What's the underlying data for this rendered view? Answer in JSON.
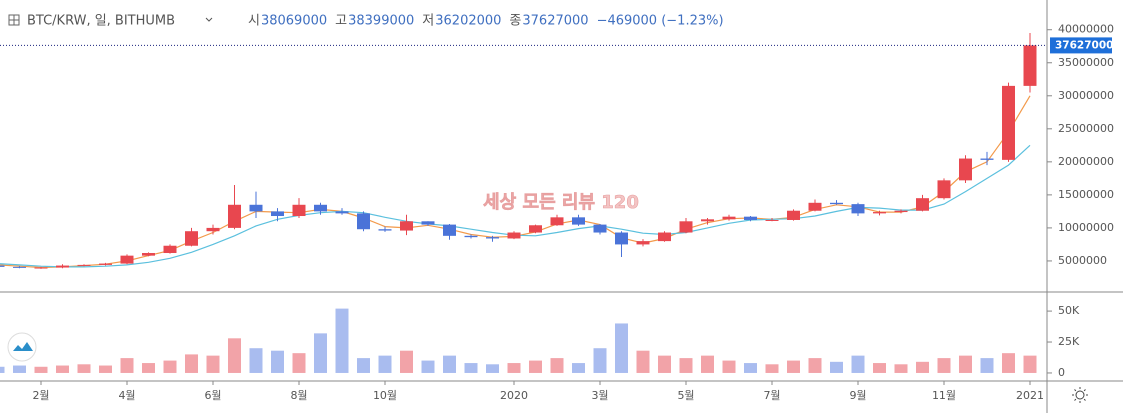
{
  "header": {
    "symbol": "BTC/KRW, 일, BITHUMB",
    "ohlc": [
      {
        "label": "시",
        "value": 38069000
      },
      {
        "label": "고",
        "value": 38399000
      },
      {
        "label": "저",
        "value": 36202000
      },
      {
        "label": "종",
        "value": 37627000
      }
    ],
    "change": "−469000 (−1.23%)"
  },
  "watermark": "세상 모든 리뷰 120",
  "chart_data": {
    "type": "candlestick",
    "categories": [
      null,
      null,
      "2월",
      null,
      null,
      null,
      "4월",
      null,
      null,
      null,
      "6월",
      null,
      null,
      null,
      "8월",
      null,
      null,
      null,
      "10월",
      null,
      null,
      null,
      null,
      null,
      "2020",
      null,
      null,
      null,
      "3월",
      null,
      null,
      null,
      "5월",
      null,
      null,
      null,
      "7월",
      null,
      null,
      null,
      "9월",
      null,
      null,
      null,
      "11월",
      null,
      null,
      null,
      "2021"
    ],
    "open": [
      4300000,
      4100000,
      4000000,
      4000000,
      4300000,
      4400000,
      4600000,
      5800000,
      6200000,
      7300000,
      9500000,
      10000000,
      13500000,
      12500000,
      11800000,
      13500000,
      12500000,
      12200000,
      9800000,
      9600000,
      11000000,
      10500000,
      8800000,
      8600000,
      8400000,
      9300000,
      10400000,
      11600000,
      10500000,
      9300000,
      7500000,
      8000000,
      9300000,
      11000000,
      11300000,
      11700000,
      11200000,
      11200000,
      12600000,
      13800000,
      13600000,
      12200000,
      12400000,
      12600000,
      14500000,
      17200000,
      20500000,
      20300000,
      31500000
    ],
    "high": [
      4500000,
      4200000,
      4100000,
      4500000,
      4500000,
      4700000,
      6000000,
      6300000,
      7500000,
      10000000,
      10500000,
      16500000,
      15500000,
      13000000,
      14500000,
      13800000,
      13000000,
      12500000,
      10200000,
      12000000,
      11000000,
      10600000,
      9000000,
      8800000,
      9500000,
      10500000,
      12000000,
      12000000,
      10600000,
      9500000,
      8300000,
      9500000,
      11500000,
      11500000,
      12000000,
      11800000,
      11500000,
      12800000,
      14300000,
      14200000,
      13800000,
      12600000,
      12800000,
      15000000,
      17500000,
      21000000,
      21500000,
      32000000,
      39500000
    ],
    "low": [
      4000000,
      3900000,
      3800000,
      3900000,
      4200000,
      4300000,
      4500000,
      5700000,
      6100000,
      7200000,
      9000000,
      9800000,
      11500000,
      11000000,
      11500000,
      12000000,
      12000000,
      9500000,
      9400000,
      8900000,
      10300000,
      8200000,
      8400000,
      7900000,
      8300000,
      9200000,
      10300000,
      10300000,
      9000000,
      5600000,
      7200000,
      7900000,
      9200000,
      10500000,
      11100000,
      11000000,
      11000000,
      11100000,
      12500000,
      13500000,
      11800000,
      11900000,
      12200000,
      12500000,
      14300000,
      16800000,
      19500000,
      20000000,
      30500000
    ],
    "close": [
      4100000,
      4000000,
      4000000,
      4300000,
      4400000,
      4600000,
      5800000,
      6200000,
      7300000,
      9500000,
      10000000,
      13500000,
      12500000,
      11800000,
      13500000,
      12500000,
      12200000,
      9800000,
      9600000,
      11000000,
      10500000,
      8800000,
      8600000,
      8400000,
      9300000,
      10400000,
      11600000,
      10500000,
      9300000,
      7500000,
      8000000,
      9300000,
      11000000,
      11300000,
      11700000,
      11200000,
      11200000,
      12600000,
      13800000,
      13600000,
      12200000,
      12400000,
      12600000,
      14500000,
      17200000,
      20500000,
      20300000,
      31500000,
      37627000
    ],
    "up_color": "#e8474f",
    "down_color": "#4a73d8",
    "moving_averages": [
      {
        "color": "#f39a4b",
        "values": [
          4400000,
          4200000,
          4000000,
          4100000,
          4300000,
          4500000,
          5000000,
          5800000,
          6600000,
          8000000,
          9300000,
          11000000,
          12500000,
          12400000,
          12300000,
          12800000,
          12500000,
          11500000,
          10200000,
          10000000,
          10400000,
          9800000,
          9000000,
          8600000,
          8700000,
          9400000,
          10600000,
          11200000,
          10500000,
          8500000,
          7700000,
          8400000,
          9800000,
          10800000,
          11400000,
          11500000,
          11300000,
          11600000,
          12800000,
          13500000,
          13200000,
          12400000,
          12400000,
          13200000,
          15500000,
          18500000,
          20000000,
          24500000,
          30000000
        ]
      },
      {
        "color": "#5bc0de",
        "values": [
          4600000,
          4400000,
          4200000,
          4100000,
          4100000,
          4200000,
          4400000,
          4800000,
          5400000,
          6300000,
          7500000,
          8800000,
          10300000,
          11300000,
          11900000,
          12300000,
          12500000,
          12300000,
          11600000,
          11000000,
          10600000,
          10300000,
          9800000,
          9300000,
          8900000,
          8800000,
          9300000,
          9900000,
          10300000,
          9800000,
          9200000,
          9000000,
          9300000,
          10000000,
          10700000,
          11200000,
          11300000,
          11400000,
          11800000,
          12500000,
          13100000,
          13000000,
          12700000,
          12700000,
          13600000,
          15500000,
          17500000,
          19500000,
          22500000
        ]
      }
    ],
    "ylim": [
      600000,
      44500000
    ],
    "yticks": [
      5000000,
      10000000,
      15000000,
      20000000,
      25000000,
      30000000,
      35000000,
      40000000
    ],
    "last_price": 37627000,
    "volume": {
      "values": [
        5000,
        6000,
        5000,
        6000,
        7000,
        6000,
        12000,
        8000,
        10000,
        15000,
        14000,
        28000,
        20000,
        18000,
        16000,
        32000,
        52000,
        12000,
        14000,
        18000,
        10000,
        14000,
        8000,
        7000,
        8000,
        10000,
        12000,
        8000,
        20000,
        40000,
        18000,
        14000,
        12000,
        14000,
        10000,
        8000,
        7000,
        10000,
        12000,
        9000,
        14000,
        8000,
        7000,
        9000,
        12000,
        14000,
        12000,
        16000,
        14000
      ],
      "up_color": "#f2a3a8",
      "down_color": "#a9bcef",
      "ylim": [
        -6500,
        63000
      ],
      "yticks": [
        0,
        {
          "value": 25000,
          "label": "25K"
        },
        {
          "value": 50000,
          "label": "50K"
        }
      ]
    }
  }
}
